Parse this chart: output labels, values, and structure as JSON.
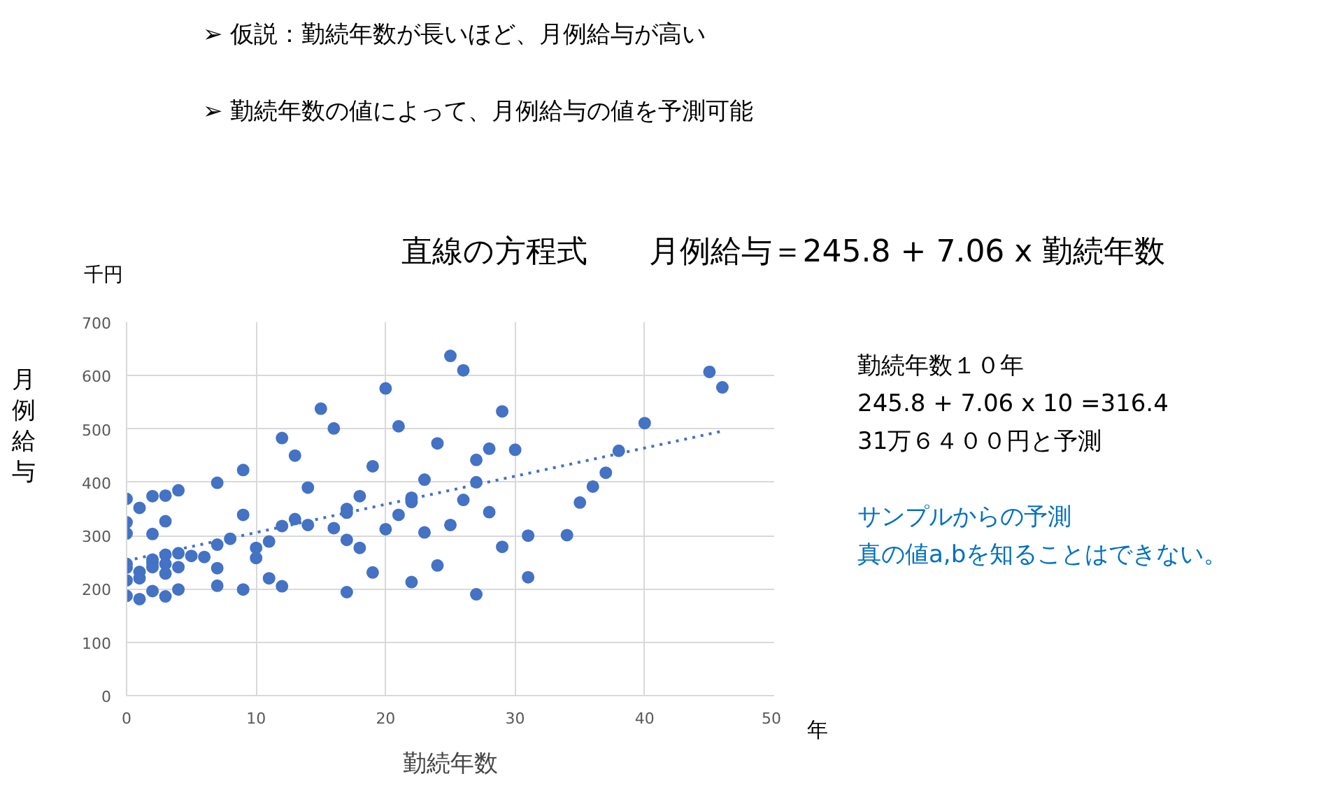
{
  "chart_data": {
    "type": "scatter",
    "title": "直線の方程式　　月例給与＝245.8 + 7.06 x 勤続年数",
    "xlabel": "勤続年数",
    "ylabel": "月例給与",
    "annotations": [
      "➢  仮説：勤続年数が長いほど、月例給与が高い",
      "➢  勤続年数の値によって、月例給与の値を予測可能",
      "千円",
      "年",
      "勤続年数１０年",
      "245.8 + 7.06 x 10 =316.4",
      "31万６４００円と予測",
      "サンプルからの予測",
      "真の値a,bを知ることはできない。"
    ],
    "xlim": [
      0,
      50
    ],
    "ylim": [
      0,
      700
    ],
    "xticks": [
      0,
      10,
      20,
      30,
      40,
      50
    ],
    "yticks": [
      0,
      100,
      200,
      300,
      400,
      500,
      600,
      700
    ],
    "grid": true,
    "marker": "circle",
    "series": [
      {
        "color": "#4472c4",
        "x": [
          0,
          0,
          0,
          0,
          0,
          0,
          0,
          1,
          1,
          1,
          1,
          2,
          2,
          2,
          2,
          2,
          2,
          3,
          3,
          3,
          3,
          3,
          3,
          4,
          4,
          4,
          4,
          5,
          6,
          7,
          7,
          7,
          7,
          8,
          9,
          9,
          9,
          10,
          10,
          11,
          11,
          12,
          12,
          12,
          13,
          13,
          14,
          14,
          15,
          16,
          16,
          17,
          17,
          17,
          17,
          18,
          18,
          19,
          19,
          20,
          20,
          21,
          21,
          22,
          22,
          22,
          23,
          23,
          24,
          24,
          25,
          25,
          26,
          26,
          27,
          27,
          27,
          28,
          28,
          29,
          29,
          30,
          31,
          31,
          34,
          35,
          36,
          37,
          38,
          40,
          45,
          46
        ],
        "values": [
          369,
          325,
          304,
          247,
          240,
          216,
          187,
          352,
          232,
          220,
          181,
          374,
          303,
          255,
          249,
          241,
          196,
          375,
          327,
          264,
          247,
          229,
          186,
          385,
          267,
          241,
          199,
          262,
          260,
          399,
          283,
          239,
          206,
          294,
          423,
          339,
          199,
          277,
          258,
          289,
          220,
          483,
          318,
          205,
          450,
          331,
          390,
          320,
          538,
          501,
          314,
          350,
          343,
          292,
          194,
          374,
          277,
          430,
          231,
          576,
          312,
          505,
          339,
          371,
          363,
          213,
          405,
          306,
          473,
          244,
          637,
          320,
          610,
          367,
          442,
          400,
          190,
          463,
          344,
          533,
          279,
          461,
          300,
          222,
          301,
          362,
          392,
          418,
          459,
          511,
          607,
          578
        ]
      },
      {
        "type": "line",
        "color": "#4472c4",
        "line_style": "dotted",
        "marker": "none",
        "x": [
          0,
          46
        ],
        "values": [
          253,
          496
        ]
      }
    ]
  }
}
